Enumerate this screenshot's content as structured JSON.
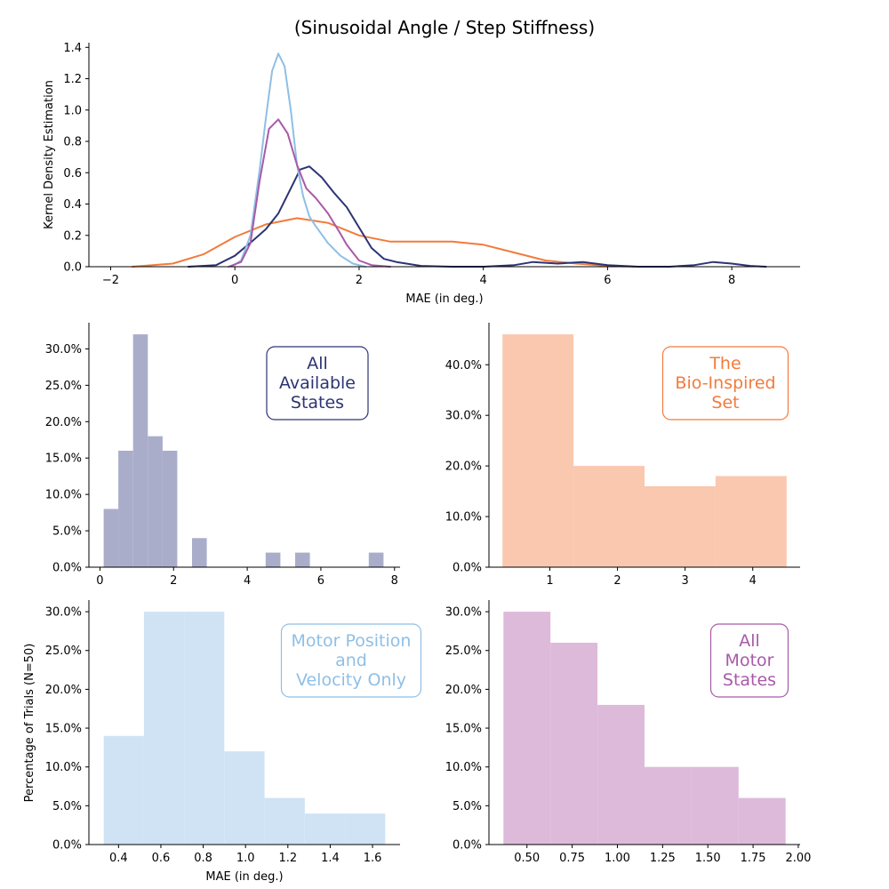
{
  "figure": {
    "title": "(Sinusoidal Angle / Step Stiffness)",
    "shared_ylabel": "Percentage of Trials (N=50)"
  },
  "colors": {
    "all_states": "#2c3473",
    "bio_inspired": "#f27b3c",
    "motor_pos_vel": "#8fbfe5",
    "all_motor": "#a85aa8",
    "all_states_fill": "#aaadca",
    "bio_inspired_fill": "#f9c8af",
    "motor_pos_vel_fill": "#cfe3f5",
    "all_motor_fill": "#ddbada"
  },
  "chart_data": [
    {
      "id": "kde",
      "type": "line",
      "xlabel": "MAE (in deg.)",
      "ylabel": "Kernel Density Estimation",
      "xlim": [
        -2.35,
        9.1
      ],
      "ylim": [
        0,
        1.43
      ],
      "xticks": [
        -2,
        0,
        2,
        4,
        6,
        8
      ],
      "yticks": [
        0.0,
        0.2,
        0.4,
        0.6,
        0.8,
        1.0,
        1.2,
        1.4
      ],
      "ytick_labels": [
        "0.0",
        "0.2",
        "0.4",
        "0.6",
        "0.8",
        "1.0",
        "1.2",
        "1.4"
      ],
      "series": [
        {
          "color_key": "bio_inspired",
          "x": [
            -1.65,
            -1.0,
            -0.5,
            0.0,
            0.5,
            1.0,
            1.5,
            2.0,
            2.5,
            3.0,
            3.5,
            4.0,
            4.5,
            5.0,
            5.5,
            6.0,
            6.45
          ],
          "y": [
            0.0,
            0.02,
            0.08,
            0.19,
            0.27,
            0.31,
            0.28,
            0.2,
            0.16,
            0.16,
            0.16,
            0.14,
            0.09,
            0.04,
            0.02,
            0.005,
            0.0
          ]
        },
        {
          "color_key": "all_states",
          "x": [
            -0.75,
            -0.3,
            0.0,
            0.3,
            0.5,
            0.7,
            0.9,
            1.05,
            1.2,
            1.4,
            1.6,
            1.8,
            2.0,
            2.2,
            2.4,
            2.6,
            3.0,
            3.5,
            4.0,
            4.5,
            4.8,
            5.2,
            5.6,
            6.0,
            6.5,
            7.0,
            7.4,
            7.7,
            8.0,
            8.3,
            8.55
          ],
          "y": [
            0.0,
            0.01,
            0.07,
            0.17,
            0.24,
            0.34,
            0.5,
            0.62,
            0.64,
            0.57,
            0.47,
            0.38,
            0.25,
            0.12,
            0.05,
            0.03,
            0.005,
            0.0,
            0.0,
            0.01,
            0.03,
            0.02,
            0.03,
            0.01,
            0.0,
            0.0,
            0.01,
            0.03,
            0.02,
            0.005,
            0.0
          ]
        },
        {
          "color_key": "motor_pos_vel",
          "x": [
            -0.05,
            0.1,
            0.25,
            0.4,
            0.5,
            0.6,
            0.7,
            0.8,
            0.9,
            1.0,
            1.1,
            1.2,
            1.3,
            1.5,
            1.7,
            1.9,
            2.1
          ],
          "y": [
            0.0,
            0.04,
            0.2,
            0.62,
            0.95,
            1.25,
            1.36,
            1.28,
            1.0,
            0.65,
            0.45,
            0.32,
            0.26,
            0.15,
            0.07,
            0.02,
            0.0
          ]
        },
        {
          "color_key": "all_motor",
          "x": [
            -0.1,
            0.1,
            0.25,
            0.4,
            0.55,
            0.7,
            0.85,
            1.0,
            1.15,
            1.3,
            1.5,
            1.7,
            1.8,
            1.9,
            2.0,
            2.2,
            2.5
          ],
          "y": [
            0.0,
            0.03,
            0.15,
            0.55,
            0.88,
            0.94,
            0.85,
            0.65,
            0.5,
            0.44,
            0.34,
            0.21,
            0.14,
            0.09,
            0.04,
            0.01,
            0.0
          ]
        }
      ]
    },
    {
      "id": "hist-all-states",
      "type": "bar",
      "box_label": [
        "All",
        "Available",
        "States"
      ],
      "color_key": "all_states",
      "fill_key": "all_states_fill",
      "bin_edges": [
        0.1,
        0.5,
        0.9,
        1.3,
        1.7,
        2.1,
        2.5,
        2.9,
        3.3,
        3.7,
        4.1,
        4.5,
        4.9,
        5.3,
        5.7,
        6.1,
        6.5,
        6.9,
        7.3,
        7.7
      ],
      "values": [
        8,
        16,
        32,
        18,
        16,
        0,
        4,
        0,
        0,
        0,
        0,
        2,
        0,
        2,
        0,
        0,
        0,
        0,
        2
      ],
      "xlim": [
        -0.3,
        8.15
      ],
      "ylim": [
        0,
        33.6
      ],
      "xticks": [
        0,
        2,
        4,
        6,
        8
      ],
      "yticks": [
        0,
        5,
        10,
        15,
        20,
        25,
        30
      ],
      "ytick_labels": [
        "0.0%",
        "5.0%",
        "10.0%",
        "15.0%",
        "20.0%",
        "25.0%",
        "30.0%"
      ]
    },
    {
      "id": "hist-bio-inspired",
      "type": "bar",
      "box_label": [
        "The",
        "Bio-Inspired",
        "Set"
      ],
      "color_key": "bio_inspired",
      "fill_key": "bio_inspired_fill",
      "bin_edges": [
        0.3,
        1.35,
        2.4,
        3.45,
        4.5
      ],
      "values": [
        46,
        20,
        16,
        18
      ],
      "xlim": [
        0.1,
        4.7
      ],
      "ylim": [
        0,
        48.3
      ],
      "xticks": [
        1,
        2,
        3,
        4
      ],
      "yticks": [
        0,
        10,
        20,
        30,
        40
      ],
      "ytick_labels": [
        "0.0%",
        "10.0%",
        "20.0%",
        "30.0%",
        "40.0%"
      ]
    },
    {
      "id": "hist-motor-pos-vel",
      "type": "bar",
      "box_label": [
        "Motor Position",
        "and",
        "Velocity Only"
      ],
      "color_key": "motor_pos_vel",
      "fill_key": "motor_pos_vel_fill",
      "xlabel": "MAE (in deg.)",
      "bin_edges": [
        0.33,
        0.52,
        0.71,
        0.9,
        1.09,
        1.28,
        1.47,
        1.66
      ],
      "values": [
        14,
        30,
        30,
        12,
        6,
        4,
        4
      ],
      "xlim": [
        0.26,
        1.73
      ],
      "ylim": [
        0,
        31.5
      ],
      "xticks": [
        0.4,
        0.6,
        0.8,
        1.0,
        1.2,
        1.4,
        1.6
      ],
      "xtick_labels": [
        "0.4",
        "0.6",
        "0.8",
        "1.0",
        "1.2",
        "1.4",
        "1.6"
      ],
      "yticks": [
        0,
        5,
        10,
        15,
        20,
        25,
        30
      ],
      "ytick_labels": [
        "0.0%",
        "5.0%",
        "10.0%",
        "15.0%",
        "20.0%",
        "25.0%",
        "30.0%"
      ]
    },
    {
      "id": "hist-all-motor",
      "type": "bar",
      "box_label": [
        "All",
        "Motor",
        "States"
      ],
      "color_key": "all_motor",
      "fill_key": "all_motor_fill",
      "bin_edges": [
        0.37,
        0.63,
        0.89,
        1.15,
        1.41,
        1.67,
        1.93
      ],
      "values": [
        30,
        26,
        18,
        10,
        10,
        6
      ],
      "xlim": [
        0.29,
        2.01
      ],
      "ylim": [
        0,
        31.5
      ],
      "xticks": [
        0.5,
        0.75,
        1.0,
        1.25,
        1.5,
        1.75,
        2.0
      ],
      "xtick_labels": [
        "0.50",
        "0.75",
        "1.00",
        "1.25",
        "1.50",
        "1.75",
        "2.00"
      ],
      "yticks": [
        0,
        5,
        10,
        15,
        20,
        25,
        30
      ],
      "ytick_labels": [
        "0.0%",
        "5.0%",
        "10.0%",
        "15.0%",
        "20.0%",
        "25.0%",
        "30.0%"
      ]
    }
  ]
}
